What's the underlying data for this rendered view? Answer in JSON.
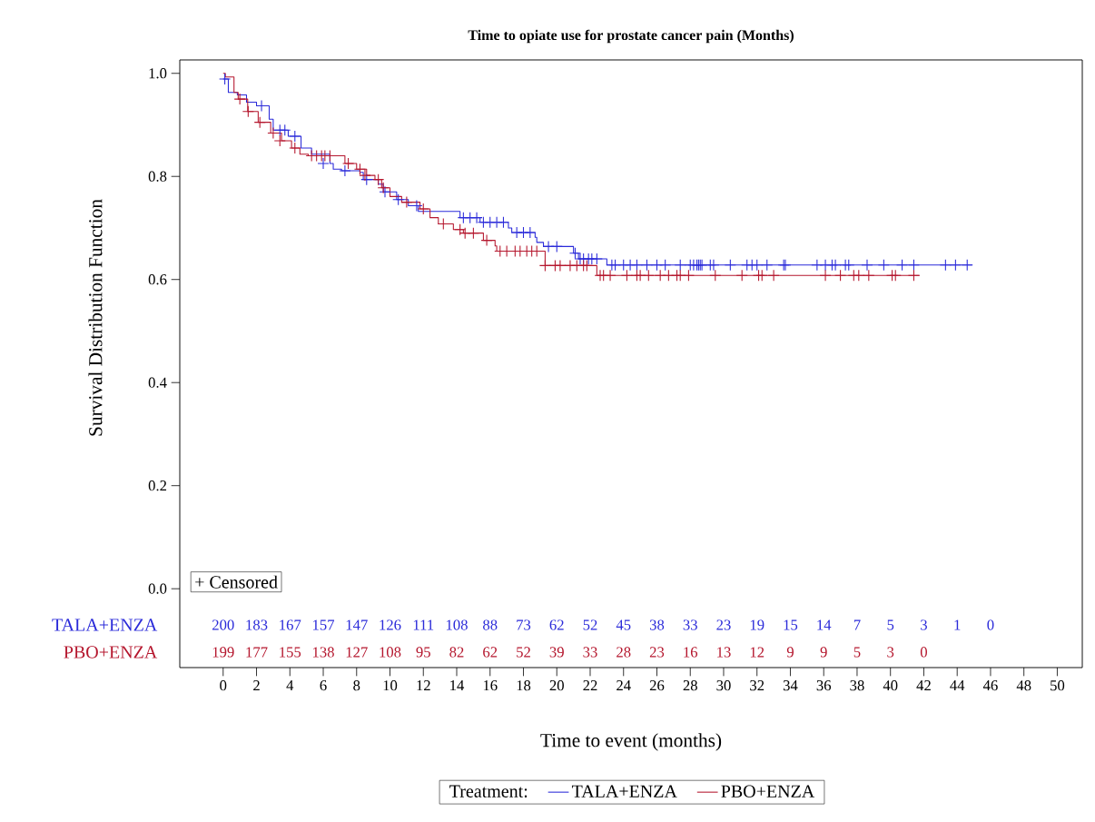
{
  "chart_data": {
    "type": "step",
    "title": "Time to opiate use for prostate cancer pain (Months)",
    "xlabel": "Time to event (months)",
    "ylabel": "Survival Distribution Function",
    "legend_title": "Treatment:",
    "legend": "bottom",
    "line_style": "solid",
    "xlim": [
      -2.6,
      51.5
    ],
    "ylim": [
      -0.153,
      1.026
    ],
    "xticks": [
      0,
      2,
      4,
      6,
      8,
      10,
      12,
      14,
      16,
      18,
      20,
      22,
      24,
      26,
      28,
      30,
      32,
      34,
      36,
      38,
      40,
      42,
      44,
      46,
      48,
      50
    ],
    "yticks": [
      {
        "value": 0,
        "label": "0.0"
      },
      {
        "value": 0.2,
        "label": "0.2"
      },
      {
        "value": 0.4,
        "label": "0.4"
      },
      {
        "value": 0.6,
        "label": "0.6"
      },
      {
        "value": 0.8,
        "label": "0.8"
      },
      {
        "value": 1,
        "label": "1.0"
      }
    ],
    "series": [
      {
        "name": "TALA+ENZA",
        "color": "#2b2bd9",
        "marker": "none",
        "x": [
          0,
          0.31,
          0.85,
          1.4,
          2.0,
          2.76,
          3.0,
          3.9,
          4.67,
          5.3,
          6.4,
          6.6,
          7.1,
          8.2,
          8.4,
          9.3,
          9.6,
          10.4,
          11.1,
          11.7,
          14.2,
          15.4,
          17.1,
          17.3,
          18.7,
          18.8,
          19.2,
          21.0,
          21.3,
          23.0,
          44.9
        ],
        "values": [
          0.989,
          0.963,
          0.958,
          0.944,
          0.937,
          0.911,
          0.89,
          0.878,
          0.855,
          0.843,
          0.825,
          0.814,
          0.811,
          0.808,
          0.794,
          0.785,
          0.77,
          0.755,
          0.743,
          0.732,
          0.72,
          0.711,
          0.7,
          0.691,
          0.682,
          0.672,
          0.664,
          0.651,
          0.64,
          0.628,
          0.628
        ]
      },
      {
        "name": "PBO+ENZA",
        "color": "#b5172e",
        "marker": "none",
        "x": [
          0,
          0.13,
          0.65,
          0.9,
          1.47,
          2.1,
          2.85,
          3.5,
          4.1,
          4.6,
          5.1,
          7.3,
          8.0,
          8.6,
          9.1,
          9.5,
          10.0,
          10.7,
          11.8,
          12.4,
          12.9,
          13.8,
          14.4,
          15.6,
          16.3,
          16.4,
          19.3,
          22.4,
          41.75
        ],
        "values": [
          1.0,
          0.993,
          0.963,
          0.95,
          0.926,
          0.905,
          0.884,
          0.869,
          0.855,
          0.843,
          0.84,
          0.825,
          0.814,
          0.802,
          0.794,
          0.778,
          0.761,
          0.75,
          0.737,
          0.72,
          0.708,
          0.697,
          0.69,
          0.676,
          0.665,
          0.655,
          0.627,
          0.608,
          0.608
        ]
      },
      {
        "type": "scatter",
        "color": "#2b2bd9",
        "marker": "cross",
        "x": [
          0.1,
          2.3,
          3.4,
          3.7,
          4.3,
          6.0,
          7.3,
          8.6,
          9.7,
          10.5,
          11.6,
          14.4,
          14.8,
          15.2,
          15.6,
          16.0,
          16.4,
          16.8,
          17.6,
          18.0,
          18.4,
          19.5,
          20.0,
          21.1,
          21.4,
          21.6,
          21.9,
          22.1,
          22.4,
          23.3,
          23.5,
          24.0,
          24.4,
          24.8,
          25.4,
          26.0,
          26.5,
          27.4,
          28.0,
          28.2,
          28.4,
          28.5,
          28.6,
          28.7,
          29.2,
          29.4,
          30.4,
          31.4,
          31.7,
          32.0,
          32.6,
          33.6,
          33.7,
          35.6,
          36.1,
          36.5,
          36.7,
          37.3,
          37.5,
          38.6,
          39.6,
          40.7,
          41.4,
          43.3,
          43.9,
          44.6
        ],
        "values": [
          0.989,
          0.937,
          0.89,
          0.89,
          0.878,
          0.825,
          0.811,
          0.794,
          0.77,
          0.755,
          0.743,
          0.72,
          0.72,
          0.72,
          0.711,
          0.711,
          0.711,
          0.711,
          0.691,
          0.691,
          0.691,
          0.664,
          0.664,
          0.651,
          0.64,
          0.64,
          0.64,
          0.64,
          0.64,
          0.628,
          0.628,
          0.628,
          0.628,
          0.628,
          0.628,
          0.628,
          0.628,
          0.628,
          0.628,
          0.628,
          0.628,
          0.628,
          0.628,
          0.628,
          0.628,
          0.628,
          0.628,
          0.628,
          0.628,
          0.628,
          0.628,
          0.628,
          0.628,
          0.628,
          0.628,
          0.628,
          0.628,
          0.628,
          0.628,
          0.628,
          0.628,
          0.628,
          0.628,
          0.628,
          0.628,
          0.628
        ]
      },
      {
        "type": "scatter",
        "color": "#b5172e",
        "marker": "cross",
        "x": [
          1.0,
          1.5,
          2.2,
          3.0,
          3.4,
          4.3,
          5.3,
          5.6,
          5.9,
          6.1,
          6.4,
          7.5,
          8.2,
          8.5,
          9.3,
          9.6,
          11.0,
          12.0,
          13.2,
          14.2,
          14.5,
          15.0,
          15.8,
          16.6,
          17.0,
          17.5,
          17.8,
          18.2,
          18.5,
          18.8,
          19.3,
          19.9,
          20.2,
          20.8,
          21.2,
          21.6,
          21.8,
          22.6,
          22.8,
          23.2,
          24.2,
          24.8,
          25.0,
          25.5,
          26.2,
          26.7,
          27.2,
          27.4,
          27.9,
          29.5,
          31.1,
          32.1,
          32.3,
          33.0,
          36.1,
          37.0,
          37.8,
          38.1,
          38.7,
          40.1,
          40.3,
          41.4
        ],
        "values": [
          0.95,
          0.926,
          0.905,
          0.884,
          0.869,
          0.855,
          0.84,
          0.84,
          0.84,
          0.84,
          0.84,
          0.825,
          0.814,
          0.802,
          0.794,
          0.778,
          0.75,
          0.737,
          0.708,
          0.697,
          0.69,
          0.69,
          0.676,
          0.655,
          0.655,
          0.655,
          0.655,
          0.655,
          0.655,
          0.655,
          0.627,
          0.627,
          0.627,
          0.627,
          0.627,
          0.627,
          0.627,
          0.608,
          0.608,
          0.608,
          0.608,
          0.608,
          0.608,
          0.608,
          0.608,
          0.608,
          0.608,
          0.608,
          0.608,
          0.608,
          0.608,
          0.608,
          0.608,
          0.608,
          0.608,
          0.608,
          0.608,
          0.608,
          0.608,
          0.608,
          0.608,
          0.608
        ]
      }
    ],
    "annotations": [
      "+ Censored",
      "200",
      "183",
      "167",
      "157",
      "147",
      "126",
      "111",
      "108",
      "88",
      "73",
      "62",
      "52",
      "45",
      "38",
      "33",
      "23",
      "19",
      "15",
      "14",
      "7",
      "5",
      "3",
      "1",
      "0",
      "199",
      "177",
      "155",
      "138",
      "127",
      "108",
      "95",
      "82",
      "62",
      "52",
      "39",
      "33",
      "28",
      "23",
      "16",
      "13",
      "12",
      "9",
      "9",
      "5",
      "3",
      "0"
    ]
  }
}
